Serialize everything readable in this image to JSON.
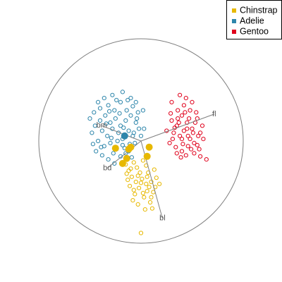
{
  "chart_data": {
    "type": "scatter",
    "plot_type": "biplot",
    "title": "",
    "xlabel": "",
    "ylabel": "",
    "grid": false,
    "legend_placement": "top-right",
    "colors": {
      "Chinstrap": "#E7B800",
      "Adelie": "#2E86AB",
      "Gentoo": "#E0001B",
      "axes": "#7F7F7F",
      "circle": "#7F7F7F"
    },
    "legend": [
      {
        "name": "Chinstrap",
        "color": "#E7B800"
      },
      {
        "name": "Adelie",
        "color": "#2E86AB"
      },
      {
        "name": "Gentoo",
        "color": "#E0001B"
      }
    ],
    "circle_radius": 1.0,
    "axes": [
      {
        "name": "fl",
        "x": 0.716,
        "y": 0.263
      },
      {
        "name": "bd",
        "x": -0.329,
        "y": -0.265
      },
      {
        "name": "bl",
        "x": 0.21,
        "y": -0.756
      },
      {
        "name": "bm",
        "x": -0.384,
        "y": 0.15
      }
    ],
    "series": [
      {
        "name": "Chinstrap",
        "points": [
          [
            -0.15,
            -0.23
          ],
          [
            -0.12,
            -0.29
          ],
          [
            -0.07,
            -0.21
          ],
          [
            -0.04,
            -0.26
          ],
          [
            0.02,
            -0.19
          ],
          [
            0.07,
            -0.31
          ],
          [
            -0.09,
            -0.35
          ],
          [
            0.01,
            -0.37
          ],
          [
            0.05,
            -0.42
          ],
          [
            -0.02,
            -0.46
          ],
          [
            0.1,
            -0.4
          ],
          [
            -0.06,
            -0.52
          ],
          [
            0.03,
            -0.55
          ],
          [
            0.12,
            -0.5
          ],
          [
            -0.03,
            -0.62
          ],
          [
            0.09,
            -0.6
          ],
          [
            -0.11,
            -0.44
          ],
          [
            0.15,
            -0.36
          ],
          [
            0.06,
            -0.49
          ],
          [
            -0.01,
            -0.31
          ],
          [
            0.13,
            -0.28
          ],
          [
            -0.13,
            -0.38
          ],
          [
            0.04,
            -0.67
          ],
          [
            -0.08,
            -0.58
          ],
          [
            0.11,
            -0.66
          ],
          [
            0.0,
            -0.41
          ],
          [
            0.08,
            -0.45
          ],
          [
            -0.05,
            -0.4
          ],
          [
            0.14,
            -0.45
          ],
          [
            -0.1,
            -0.27
          ],
          [
            0.02,
            -0.51
          ],
          [
            0.06,
            -0.35
          ],
          [
            -0.03,
            -0.34
          ],
          [
            0.1,
            -0.55
          ],
          [
            -0.07,
            -0.48
          ],
          [
            0.18,
            -0.42
          ],
          [
            0.05,
            -0.24
          ],
          [
            -0.14,
            -0.32
          ],
          [
            0.0,
            -0.9
          ]
        ]
      },
      {
        "name": "Adelie",
        "points": [
          [
            -0.4,
            0.2
          ],
          [
            -0.35,
            0.25
          ],
          [
            -0.3,
            0.18
          ],
          [
            -0.25,
            0.22
          ],
          [
            -0.2,
            0.15
          ],
          [
            -0.15,
            0.2
          ],
          [
            -0.1,
            0.25
          ],
          [
            -0.05,
            0.18
          ],
          [
            -0.38,
            0.1
          ],
          [
            -0.33,
            0.05
          ],
          [
            -0.28,
            0.12
          ],
          [
            -0.22,
            0.08
          ],
          [
            -0.18,
            0.02
          ],
          [
            -0.12,
            0.1
          ],
          [
            -0.08,
            0.05
          ],
          [
            -0.02,
            0.12
          ],
          [
            -0.42,
            0.0
          ],
          [
            -0.36,
            -0.05
          ],
          [
            -0.3,
            -0.02
          ],
          [
            -0.24,
            -0.08
          ],
          [
            -0.18,
            -0.04
          ],
          [
            -0.12,
            -0.1
          ],
          [
            -0.06,
            -0.02
          ],
          [
            0.0,
            0.05
          ],
          [
            -0.45,
            0.15
          ],
          [
            -0.4,
            0.32
          ],
          [
            -0.32,
            0.35
          ],
          [
            -0.26,
            0.3
          ],
          [
            -0.2,
            0.38
          ],
          [
            -0.14,
            0.3
          ],
          [
            -0.08,
            0.34
          ],
          [
            -0.03,
            0.28
          ],
          [
            -0.48,
            0.08
          ],
          [
            -0.44,
            -0.1
          ],
          [
            -0.38,
            -0.14
          ],
          [
            -0.32,
            -0.18
          ],
          [
            -0.26,
            -0.22
          ],
          [
            -0.2,
            -0.15
          ],
          [
            -0.15,
            -0.12
          ],
          [
            -0.09,
            -0.16
          ],
          [
            -0.36,
            0.42
          ],
          [
            -0.28,
            0.45
          ],
          [
            -0.18,
            0.48
          ],
          [
            -0.1,
            0.42
          ],
          [
            -0.05,
            0.38
          ],
          [
            0.02,
            0.3
          ],
          [
            -0.5,
            0.22
          ],
          [
            -0.46,
            0.28
          ],
          [
            -0.42,
            0.38
          ],
          [
            -0.23,
            0.0
          ],
          [
            -0.17,
            0.13
          ],
          [
            -0.11,
            -0.03
          ],
          [
            -0.27,
            -0.12
          ],
          [
            -0.34,
            0.17
          ],
          [
            -0.04,
            0.22
          ],
          [
            -0.21,
            0.27
          ],
          [
            -0.29,
            0.03
          ],
          [
            -0.13,
            0.4
          ],
          [
            -0.07,
            0.08
          ],
          [
            -0.39,
            -0.06
          ],
          [
            -0.16,
            -0.07
          ],
          [
            -0.47,
            -0.03
          ],
          [
            -0.31,
            0.29
          ],
          [
            0.03,
            0.12
          ],
          [
            -0.24,
            0.4
          ]
        ]
      },
      {
        "name": "Gentoo",
        "points": [
          [
            0.3,
            0.2
          ],
          [
            0.35,
            0.15
          ],
          [
            0.4,
            0.25
          ],
          [
            0.45,
            0.18
          ],
          [
            0.5,
            0.12
          ],
          [
            0.55,
            0.22
          ],
          [
            0.32,
            0.08
          ],
          [
            0.38,
            0.05
          ],
          [
            0.42,
            0.1
          ],
          [
            0.48,
            0.02
          ],
          [
            0.52,
            -0.02
          ],
          [
            0.58,
            0.08
          ],
          [
            0.28,
            -0.02
          ],
          [
            0.34,
            -0.06
          ],
          [
            0.4,
            -0.1
          ],
          [
            0.46,
            -0.05
          ],
          [
            0.52,
            -0.12
          ],
          [
            0.36,
            0.3
          ],
          [
            0.42,
            0.35
          ],
          [
            0.48,
            0.3
          ],
          [
            0.54,
            0.28
          ],
          [
            0.6,
            0.15
          ],
          [
            0.44,
            0.42
          ],
          [
            0.5,
            0.38
          ],
          [
            0.3,
            0.38
          ],
          [
            0.38,
            0.45
          ],
          [
            0.46,
            0.05
          ],
          [
            0.41,
            -0.03
          ],
          [
            0.37,
            0.18
          ],
          [
            0.33,
            0.13
          ],
          [
            0.56,
            0.05
          ],
          [
            0.47,
            0.22
          ],
          [
            0.51,
            0.08
          ],
          [
            0.43,
            0.28
          ],
          [
            0.39,
            -0.16
          ],
          [
            0.49,
            -0.08
          ],
          [
            0.55,
            -0.04
          ],
          [
            0.29,
            0.27
          ],
          [
            0.35,
            -0.12
          ],
          [
            0.61,
            0.02
          ],
          [
            0.45,
            0.12
          ],
          [
            0.53,
            0.18
          ],
          [
            0.31,
            0.02
          ],
          [
            0.57,
            -0.08
          ],
          [
            0.4,
            0.02
          ],
          [
            0.44,
            -0.14
          ],
          [
            0.36,
            0.22
          ],
          [
            0.64,
            -0.18
          ],
          [
            0.25,
            0.1
          ],
          [
            0.58,
            -0.15
          ]
        ]
      }
    ],
    "highlighted_points": [
      {
        "series": "Chinstrap",
        "x": -0.25,
        "y": -0.07
      },
      {
        "series": "Chinstrap",
        "x": -0.12,
        "y": -0.08
      },
      {
        "series": "Chinstrap",
        "x": -0.1,
        "y": -0.06
      },
      {
        "series": "Chinstrap",
        "x": 0.08,
        "y": -0.06
      },
      {
        "series": "Chinstrap",
        "x": -0.14,
        "y": -0.17
      },
      {
        "series": "Chinstrap",
        "x": 0.06,
        "y": -0.15
      },
      {
        "series": "Chinstrap",
        "x": -0.18,
        "y": -0.22
      },
      {
        "series": "Adelie",
        "x": -0.16,
        "y": 0.05
      }
    ]
  }
}
